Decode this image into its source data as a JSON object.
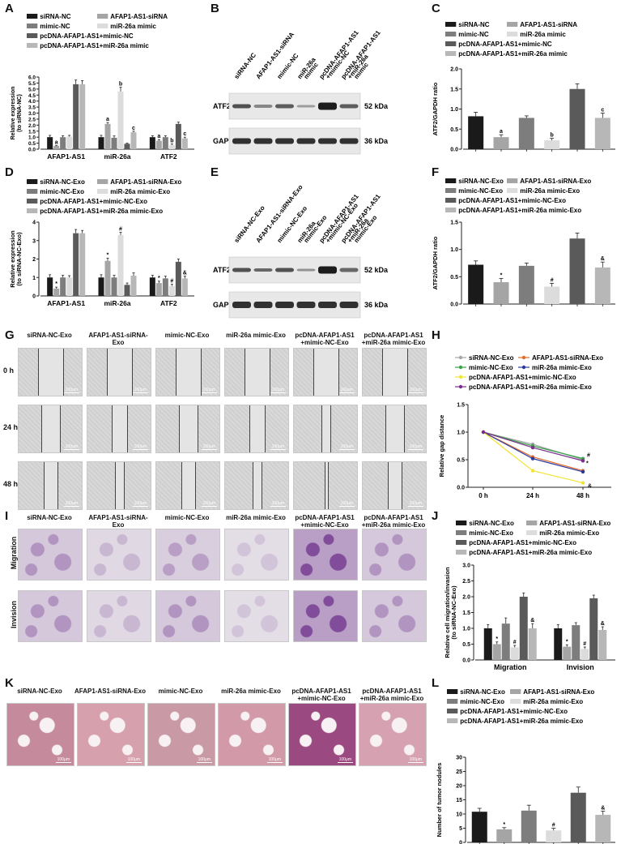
{
  "panel_labels": {
    "A": "A",
    "B": "B",
    "C": "C",
    "D": "D",
    "E": "E",
    "F": "F",
    "G": "G",
    "H": "H",
    "I": "I",
    "J": "J",
    "K": "K",
    "L": "L"
  },
  "colors": {
    "c1": "#1a1a1a",
    "c2": "#a5a5a5",
    "c3": "#7d7d7d",
    "c4": "#dcdcdc",
    "c5": "#5a5a5a",
    "c6": "#b7b7b7"
  },
  "panelA": {
    "legend": [
      "siRNA-NC",
      "AFAP1-AS1-siRNA",
      "mimic-NC",
      "miR-26a mimic",
      "pcDNA-AFAP1-AS1+mimic-NC",
      "pcDNA-AFAP1-AS1+miR-26a mimic"
    ],
    "ylabel": "Relative expression (to siRNA-NC)"
  },
  "panelB": {
    "lanes": [
      "siRNA-NC",
      "AFAP1-AS1-siRNA",
      "mimic-NC",
      "miR-26a mimic",
      "pcDNA-AFAP1-AS1 +mimic-NC",
      "pcDNA-AFAP1-AS1 +miR-26a mimic"
    ],
    "rows": [
      {
        "name": "ATF2",
        "kda": "52 kDa"
      },
      {
        "name": "GAPDH",
        "kda": "36 kDa"
      }
    ]
  },
  "panelC": {
    "legend": [
      "siRNA-NC",
      "AFAP1-AS1-siRNA",
      "mimic-NC",
      "miR-26a mimic",
      "pcDNA-AFAP1-AS1+mimic-NC",
      "pcDNA-AFAP1-AS1+miR-26a mimic"
    ],
    "ylabel": "ATF2/GAPDH ratio"
  },
  "panelD": {
    "legend": [
      "siRNA-NC-Exo",
      "AFAP1-AS1-siRNA-Exo",
      "mimic-NC-Exo",
      "miR-26a mimic-Exo",
      "pcDNA-AFAP1-AS1+mimic-NC-Exo",
      "pcDNA-AFAP1-AS1+miR-26a mimic-Exo"
    ],
    "ylabel": "Relative expression (to siRNA-NC-Exo)"
  },
  "panelE": {
    "lanes": [
      "siRNA-NC-Exo",
      "AFAP1-AS1-siRNA-Exo",
      "mimic-NC-Exo",
      "miR-26a mimic-Exo",
      "pcDNA-AFAP1-AS1 +mimic-NC-Exo",
      "pcDNA-AFAP1-AS1 +miR-26a mimic-Exo"
    ],
    "rows": [
      {
        "name": "ATF2",
        "kda": "52 kDa"
      },
      {
        "name": "GAPDH",
        "kda": "36 kDa"
      }
    ]
  },
  "panelF": {
    "legend": [
      "siRNA-NC-Exo",
      "AFAP1-AS1-siRNA-Exo",
      "mimic-NC-Exo",
      "miR-26a mimic-Exo",
      "pcDNA-AFAP1-AS1+mimic-NC-Exo",
      "pcDNA-AFAP1-AS1+miR-26a mimic-Exo"
    ],
    "ylabel": "ATF2/GAPDH ratio"
  },
  "panelG": {
    "columns": [
      "siRNA-NC-Exo",
      "AFAP1-AS1-siRNA-Exo",
      "mimic-NC-Exo",
      "miR-26a mimic-Exo",
      "pcDNA-AFAP1-AS1 +mimic-NC-Exo",
      "pcDNA-AFAP1-AS1 +miR-26a mimic-Exo"
    ],
    "rows": [
      "0 h",
      "24 h",
      "48 h"
    ],
    "scale": "100μm"
  },
  "panelH": {
    "legend": [
      "siRNA-NC-Exo",
      "AFAP1-AS1-siRNA-Exo",
      "mimic-NC-Exo",
      "miR-26a mimic-Exo",
      "pcDNA-AFAP1-AS1+mimic-NC-Exo",
      "pcDNA-AFAP1-AS1+miR-26a mimic-Exo"
    ],
    "ylabel": "Relative gap distance",
    "line_colors": [
      "#a5a5a5",
      "#e36c2a",
      "#3aa34a",
      "#2b3b9c",
      "#f1e532",
      "#7b2d8e"
    ]
  },
  "panelI": {
    "columns": [
      "siRNA-NC-Exo",
      "AFAP1-AS1-siRNA-Exo",
      "mimic-NC-Exo",
      "miR-26a mimic-Exo",
      "pcDNA-AFAP1-AS1 +mimic-NC-Exo",
      "pcDNA-AFAP1-AS1 +miR-26a mimic-Exo"
    ],
    "rows": [
      "Migration",
      "Invision"
    ]
  },
  "panelJ": {
    "legend": [
      "siRNA-NC-Exo",
      "AFAP1-AS1-siRNA-Exo",
      "mimic-NC-Exo",
      "miR-26a mimic-Exo",
      "pcDNA-AFAP1-AS1+mimic-NC-Exo",
      "pcDNA-AFAP1-AS1+miR-26a mimic-Exo"
    ],
    "ylabel": "Relative cell migration/invasion (to siRNA-NC-Exo)"
  },
  "panelK": {
    "columns": [
      "siRNA-NC-Exo",
      "AFAP1-AS1-siRNA-Exo",
      "mimic-NC-Exo",
      "miR-26a mimic-Exo",
      "pcDNA-AFAP1-AS1 +mimic-NC-Exo",
      "pcDNA-AFAP1-AS1 +miR-26a mimic-Exo"
    ],
    "scale": "100μm"
  },
  "panelL": {
    "legend": [
      "siRNA-NC-Exo",
      "AFAP1-AS1-siRNA-Exo",
      "mimic-NC-Exo",
      "miR-26a mimic-Exo",
      "pcDNA-AFAP1-AS1+mimic-NC-Exo",
      "pcDNA-AFAP1-AS1+miR-26a mimic-Exo"
    ],
    "ylabel": "Number of tumor nodules"
  },
  "chart_data": [
    {
      "id": "A",
      "type": "bar",
      "categories": [
        "AFAP1-AS1",
        "miR-26a",
        "ATF2"
      ],
      "series": [
        {
          "name": "siRNA-NC",
          "values": [
            1.0,
            1.0,
            1.0
          ],
          "err": [
            0.15,
            0.15,
            0.12
          ],
          "ann": [
            "",
            "",
            ""
          ]
        },
        {
          "name": "AFAP1-AS1-siRNA",
          "values": [
            0.28,
            2.1,
            0.7
          ],
          "err": [
            0.04,
            0.12,
            0.1
          ],
          "ann": [
            "a",
            "a",
            "a"
          ]
        },
        {
          "name": "mimic-NC",
          "values": [
            1.0,
            0.95,
            1.0
          ],
          "err": [
            0.12,
            0.15,
            0.12
          ],
          "ann": [
            "",
            "",
            ""
          ]
        },
        {
          "name": "miR-26a mimic",
          "values": [
            1.05,
            4.8,
            0.35
          ],
          "err": [
            0.1,
            0.35,
            0.08
          ],
          "ann": [
            "",
            "b",
            "b"
          ]
        },
        {
          "name": "pcDNA-AFAP1-AS1+mimic-NC",
          "values": [
            5.4,
            0.45,
            2.1
          ],
          "err": [
            0.35,
            0.05,
            0.15
          ],
          "ann": [
            "",
            "",
            ""
          ]
        },
        {
          "name": "pcDNA-AFAP1-AS1+miR-26a mimic",
          "values": [
            5.4,
            1.4,
            0.9
          ],
          "err": [
            0.3,
            0.1,
            0.1
          ],
          "ann": [
            "",
            "c",
            "c"
          ]
        }
      ],
      "yticks": [
        "0.0",
        "0.5",
        "1.0",
        "1.5",
        "2.0",
        "2.5",
        "3.0",
        "3.5",
        "4.0",
        "4.5",
        "5.0",
        "5.5",
        "6.0"
      ],
      "ylim": [
        0,
        6
      ]
    },
    {
      "id": "C",
      "type": "bar",
      "categories": [
        "siRNA-NC",
        "AFAP1-AS1-siRNA",
        "mimic-NC",
        "miR-26a mimic",
        "pcDNA-AFAP1-AS1+mimic-NC",
        "pcDNA-AFAP1-AS1+miR-26a mimic"
      ],
      "values": [
        0.82,
        0.3,
        0.78,
        0.22,
        1.5,
        0.78
      ],
      "err": [
        0.1,
        0.06,
        0.05,
        0.05,
        0.13,
        0.12
      ],
      "ann": [
        "",
        "a",
        "",
        "b",
        "",
        "c"
      ],
      "yticks": [
        "0.0",
        "0.5",
        "1.0",
        "1.5",
        "2.0"
      ],
      "ylim": [
        0,
        2
      ]
    },
    {
      "id": "D",
      "type": "bar",
      "categories": [
        "AFAP1-AS1",
        "miR-26a",
        "ATF2"
      ],
      "series": [
        {
          "name": "siRNA-NC-Exo",
          "values": [
            1.0,
            1.0,
            1.0
          ],
          "err": [
            0.15,
            0.15,
            0.12
          ],
          "ann": [
            "",
            "",
            ""
          ]
        },
        {
          "name": "AFAP1-AS1-siRNA-Exo",
          "values": [
            0.4,
            1.9,
            0.7
          ],
          "err": [
            0.08,
            0.15,
            0.1
          ],
          "ann": [
            "*",
            "*",
            "*"
          ]
        },
        {
          "name": "mimic-NC-Exo",
          "values": [
            1.0,
            1.0,
            0.95
          ],
          "err": [
            0.12,
            0.12,
            0.12
          ],
          "ann": [
            "",
            "",
            ""
          ]
        },
        {
          "name": "miR-26a mimic-Exo",
          "values": [
            1.0,
            3.3,
            0.55
          ],
          "err": [
            0.1,
            0.15,
            0.08
          ],
          "ann": [
            "",
            "#",
            "#"
          ]
        },
        {
          "name": "pcDNA-AFAP1-AS1+mimic-NC-Exo",
          "values": [
            3.4,
            0.6,
            1.85
          ],
          "err": [
            0.2,
            0.1,
            0.15
          ],
          "ann": [
            "",
            "",
            ""
          ]
        },
        {
          "name": "pcDNA-AFAP1-AS1+miR-26a mimic-Exo",
          "values": [
            3.4,
            1.1,
            0.95
          ],
          "err": [
            0.15,
            0.15,
            0.12
          ],
          "ann": [
            "",
            "",
            "&"
          ]
        }
      ],
      "yticks": [
        "0",
        "1",
        "2",
        "3",
        "4"
      ],
      "ylim": [
        0,
        4
      ]
    },
    {
      "id": "F",
      "type": "bar",
      "categories": [
        "siRNA-NC-Exo",
        "AFAP1-AS1-siRNA-Exo",
        "mimic-NC-Exo",
        "miR-26a mimic-Exo",
        "pcDNA-AFAP1-AS1+mimic-NC-Exo",
        "pcDNA-AFAP1-AS1+miR-26a mimic-Exo"
      ],
      "values": [
        0.72,
        0.4,
        0.7,
        0.32,
        1.2,
        0.67
      ],
      "err": [
        0.07,
        0.07,
        0.05,
        0.06,
        0.1,
        0.1
      ],
      "ann": [
        "",
        "*",
        "",
        "#",
        "",
        "&"
      ],
      "yticks": [
        "0.0",
        "0.5",
        "1.0",
        "1.5"
      ],
      "ylim": [
        0,
        1.5
      ]
    },
    {
      "id": "H",
      "type": "line",
      "x": [
        "0 h",
        "24 h",
        "48 h"
      ],
      "series": [
        {
          "name": "siRNA-NC-Exo",
          "values": [
            1.0,
            0.78,
            0.5
          ]
        },
        {
          "name": "AFAP1-AS1-siRNA-Exo",
          "values": [
            1.0,
            0.55,
            0.3
          ]
        },
        {
          "name": "mimic-NC-Exo",
          "values": [
            1.0,
            0.75,
            0.52
          ]
        },
        {
          "name": "miR-26a mimic-Exo",
          "values": [
            1.0,
            0.52,
            0.28
          ]
        },
        {
          "name": "pcDNA-AFAP1-AS1+mimic-NC-Exo",
          "values": [
            1.0,
            0.3,
            0.08
          ]
        },
        {
          "name": "pcDNA-AFAP1-AS1+miR-26a mimic-Exo",
          "values": [
            1.0,
            0.72,
            0.48
          ]
        }
      ],
      "ann": [
        "*",
        "#",
        "&"
      ],
      "yticks": [
        "0.0",
        "0.5",
        "1.0",
        "1.5"
      ],
      "ylim": [
        0,
        1.5
      ]
    },
    {
      "id": "J",
      "type": "bar",
      "categories": [
        "Migration",
        "Invision"
      ],
      "series": [
        {
          "name": "siRNA-NC-Exo",
          "values": [
            1.0,
            1.0
          ],
          "err": [
            0.12,
            0.12
          ],
          "ann": [
            "",
            ""
          ]
        },
        {
          "name": "AFAP1-AS1-siRNA-Exo",
          "values": [
            0.5,
            0.42
          ],
          "err": [
            0.07,
            0.06
          ],
          "ann": [
            "*",
            "*"
          ]
        },
        {
          "name": "mimic-NC-Exo",
          "values": [
            1.15,
            1.1
          ],
          "err": [
            0.18,
            0.08
          ],
          "ann": [
            "",
            ""
          ]
        },
        {
          "name": "miR-26a mimic-Exo",
          "values": [
            0.4,
            0.35
          ],
          "err": [
            0.06,
            0.06
          ],
          "ann": [
            "#",
            "#"
          ]
        },
        {
          "name": "pcDNA-AFAP1-AS1+mimic-NC-Exo",
          "values": [
            2.0,
            1.95
          ],
          "err": [
            0.12,
            0.1
          ],
          "ann": [
            "",
            ""
          ]
        },
        {
          "name": "pcDNA-AFAP1-AS1+miR-26a mimic-Exo",
          "values": [
            1.0,
            0.95
          ],
          "err": [
            0.15,
            0.1
          ],
          "ann": [
            "&",
            "&"
          ]
        }
      ],
      "yticks": [
        "0.0",
        "0.5",
        "1.0",
        "1.5",
        "2.0",
        "2.5",
        "3.0"
      ],
      "ylim": [
        0,
        3
      ]
    },
    {
      "id": "L",
      "type": "bar",
      "categories": [
        "siRNA-NC-Exo",
        "AFAP1-AS1-siRNA-Exo",
        "mimic-NC-Exo",
        "miR-26a mimic-Exo",
        "pcDNA-AFAP1-AS1+mimic-NC-Exo",
        "pcDNA-AFAP1-AS1+miR-26a mimic-Exo"
      ],
      "values": [
        10.8,
        4.6,
        11.2,
        4.2,
        17.5,
        9.7
      ],
      "err": [
        1.2,
        0.6,
        1.9,
        0.8,
        2.0,
        1.3
      ],
      "ann": [
        "",
        "*",
        "",
        "#",
        "",
        "&"
      ],
      "yticks": [
        "0",
        "5",
        "10",
        "15",
        "20",
        "25",
        "30"
      ],
      "ylim": [
        0,
        30
      ]
    }
  ]
}
